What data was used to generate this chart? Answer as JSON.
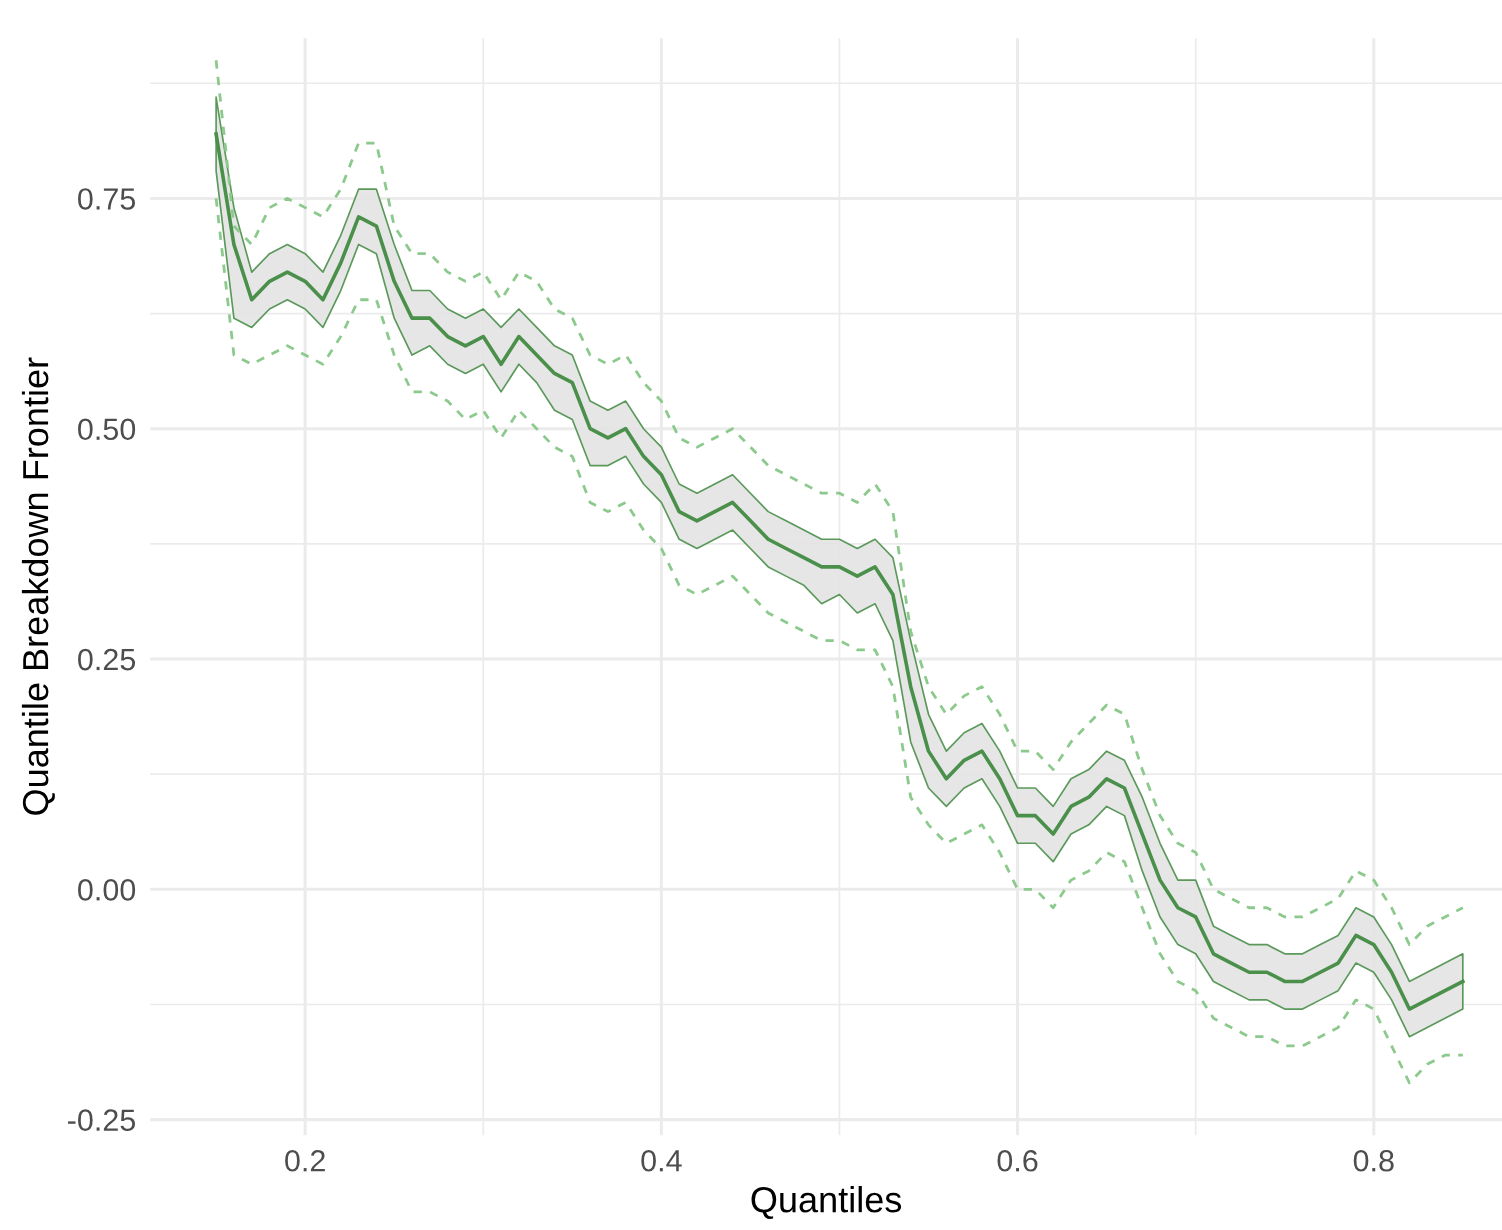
{
  "chart_data": {
    "type": "line",
    "xlabel": "Quantiles",
    "ylabel": "Quantile Breakdown Frontier",
    "x": [
      0.15,
      0.16,
      0.17,
      0.18,
      0.19,
      0.2,
      0.21,
      0.22,
      0.23,
      0.24,
      0.25,
      0.26,
      0.27,
      0.28,
      0.29,
      0.3,
      0.31,
      0.32,
      0.33,
      0.34,
      0.35,
      0.36,
      0.37,
      0.38,
      0.39,
      0.4,
      0.41,
      0.42,
      0.43,
      0.44,
      0.45,
      0.46,
      0.47,
      0.48,
      0.49,
      0.5,
      0.51,
      0.52,
      0.53,
      0.54,
      0.55,
      0.56,
      0.57,
      0.58,
      0.59,
      0.6,
      0.61,
      0.62,
      0.63,
      0.64,
      0.65,
      0.66,
      0.67,
      0.68,
      0.69,
      0.7,
      0.71,
      0.72,
      0.73,
      0.74,
      0.75,
      0.76,
      0.77,
      0.78,
      0.79,
      0.8,
      0.81,
      0.82,
      0.83,
      0.84,
      0.85
    ],
    "series": [
      {
        "color": "#4a8f4a",
        "line_style": "solid",
        "values": [
          0.82,
          0.7,
          0.64,
          0.66,
          0.67,
          0.66,
          0.64,
          0.68,
          0.73,
          0.72,
          0.66,
          0.62,
          0.62,
          0.6,
          0.59,
          0.6,
          0.57,
          0.6,
          0.58,
          0.56,
          0.55,
          0.5,
          0.49,
          0.5,
          0.47,
          0.45,
          0.41,
          0.4,
          0.41,
          0.42,
          0.4,
          0.38,
          0.37,
          0.36,
          0.35,
          0.35,
          0.34,
          0.35,
          0.32,
          0.22,
          0.15,
          0.12,
          0.14,
          0.15,
          0.12,
          0.08,
          0.08,
          0.06,
          0.09,
          0.1,
          0.12,
          0.11,
          0.06,
          0.01,
          -0.02,
          -0.03,
          -0.07,
          -0.08,
          -0.09,
          -0.09,
          -0.1,
          -0.1,
          -0.09,
          -0.08,
          -0.05,
          -0.06,
          -0.09,
          -0.13,
          -0.12,
          -0.11,
          -0.1
        ],
        "lower": [
          0.78,
          0.62,
          0.61,
          0.63,
          0.64,
          0.63,
          0.61,
          0.65,
          0.7,
          0.69,
          0.62,
          0.58,
          0.59,
          0.57,
          0.56,
          0.57,
          0.54,
          0.57,
          0.55,
          0.52,
          0.51,
          0.46,
          0.46,
          0.47,
          0.44,
          0.42,
          0.38,
          0.37,
          0.38,
          0.39,
          0.37,
          0.35,
          0.34,
          0.33,
          0.31,
          0.32,
          0.3,
          0.31,
          0.27,
          0.16,
          0.11,
          0.09,
          0.11,
          0.12,
          0.09,
          0.05,
          0.05,
          0.03,
          0.06,
          0.07,
          0.09,
          0.08,
          0.02,
          -0.03,
          -0.06,
          -0.07,
          -0.1,
          -0.11,
          -0.12,
          -0.12,
          -0.13,
          -0.13,
          -0.12,
          -0.11,
          -0.08,
          -0.09,
          -0.12,
          -0.16,
          -0.15,
          -0.14,
          -0.13
        ],
        "upper": [
          0.86,
          0.74,
          0.67,
          0.69,
          0.7,
          0.69,
          0.67,
          0.71,
          0.76,
          0.76,
          0.7,
          0.65,
          0.65,
          0.63,
          0.62,
          0.63,
          0.61,
          0.63,
          0.61,
          0.59,
          0.58,
          0.53,
          0.52,
          0.53,
          0.5,
          0.48,
          0.44,
          0.43,
          0.44,
          0.45,
          0.43,
          0.41,
          0.4,
          0.39,
          0.38,
          0.38,
          0.37,
          0.38,
          0.36,
          0.27,
          0.19,
          0.15,
          0.17,
          0.18,
          0.15,
          0.11,
          0.11,
          0.09,
          0.12,
          0.13,
          0.15,
          0.14,
          0.1,
          0.05,
          0.01,
          0.01,
          -0.04,
          -0.05,
          -0.06,
          -0.06,
          -0.07,
          -0.07,
          -0.06,
          -0.05,
          -0.02,
          -0.03,
          -0.06,
          -0.1,
          -0.09,
          -0.08,
          -0.07
        ]
      },
      {
        "color": "#8cc98c",
        "line_style": "dashed",
        "values": [
          0.9,
          0.72,
          0.7,
          0.74,
          0.75,
          0.74,
          0.73,
          0.76,
          0.81,
          0.81,
          0.72,
          0.69,
          0.69,
          0.67,
          0.66,
          0.67,
          0.64,
          0.67,
          0.66,
          0.63,
          0.62,
          0.58,
          0.57,
          0.58,
          0.55,
          0.53,
          0.49,
          0.48,
          0.49,
          0.5,
          0.48,
          0.46,
          0.45,
          0.44,
          0.43,
          0.43,
          0.42,
          0.44,
          0.41,
          0.28,
          0.22,
          0.19,
          0.21,
          0.22,
          0.19,
          0.15,
          0.15,
          0.13,
          0.16,
          0.18,
          0.2,
          0.19,
          0.13,
          0.08,
          0.05,
          0.04,
          0.0,
          -0.01,
          -0.02,
          -0.02,
          -0.03,
          -0.03,
          -0.02,
          -0.01,
          0.02,
          0.01,
          -0.02,
          -0.06,
          -0.04,
          -0.03,
          -0.02
        ]
      },
      {
        "color": "#8cc98c",
        "line_style": "dashed",
        "values": [
          0.75,
          0.58,
          0.57,
          0.58,
          0.59,
          0.58,
          0.57,
          0.6,
          0.64,
          0.64,
          0.58,
          0.54,
          0.54,
          0.53,
          0.51,
          0.52,
          0.49,
          0.52,
          0.5,
          0.48,
          0.47,
          0.42,
          0.41,
          0.42,
          0.39,
          0.37,
          0.33,
          0.32,
          0.33,
          0.34,
          0.32,
          0.3,
          0.29,
          0.28,
          0.27,
          0.27,
          0.26,
          0.26,
          0.22,
          0.1,
          0.07,
          0.05,
          0.06,
          0.07,
          0.04,
          0.0,
          0.0,
          -0.02,
          0.01,
          0.02,
          0.04,
          0.03,
          -0.02,
          -0.07,
          -0.1,
          -0.11,
          -0.14,
          -0.15,
          -0.16,
          -0.16,
          -0.17,
          -0.17,
          -0.16,
          -0.15,
          -0.12,
          -0.13,
          -0.17,
          -0.21,
          -0.19,
          -0.18,
          -0.18
        ]
      }
    ],
    "xlim": [
      0.113,
      0.872
    ],
    "ylim": [
      -0.267,
      0.924
    ],
    "xticks": [
      {
        "value": 0.2,
        "label": "0.2"
      },
      {
        "value": 0.3,
        "label": null
      },
      {
        "value": 0.4,
        "label": "0.4"
      },
      {
        "value": 0.5,
        "label": null
      },
      {
        "value": 0.6,
        "label": "0.6"
      },
      {
        "value": 0.7,
        "label": null
      },
      {
        "value": 0.8,
        "label": "0.8"
      }
    ],
    "yticks": [
      {
        "value": -0.25,
        "label": "-0.25"
      },
      {
        "value": -0.125,
        "label": null
      },
      {
        "value": 0,
        "label": "0.00"
      },
      {
        "value": 0.125,
        "label": null
      },
      {
        "value": 0.25,
        "label": "0.25"
      },
      {
        "value": 0.375,
        "label": null
      },
      {
        "value": 0.5,
        "label": "0.50"
      },
      {
        "value": 0.625,
        "label": null
      },
      {
        "value": 0.75,
        "label": "0.75"
      },
      {
        "value": 0.875,
        "label": null
      }
    ],
    "grid": true
  }
}
